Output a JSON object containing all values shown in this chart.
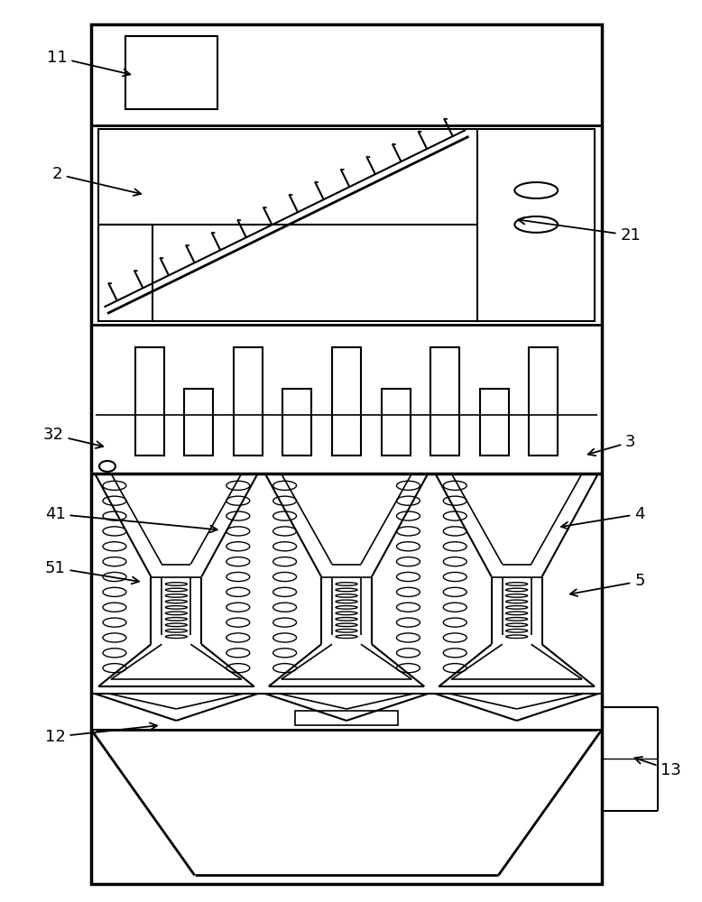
{
  "bg_color": "#ffffff",
  "line_color": "#000000",
  "fig_width": 7.78,
  "fig_height": 10.0,
  "dpi": 100
}
